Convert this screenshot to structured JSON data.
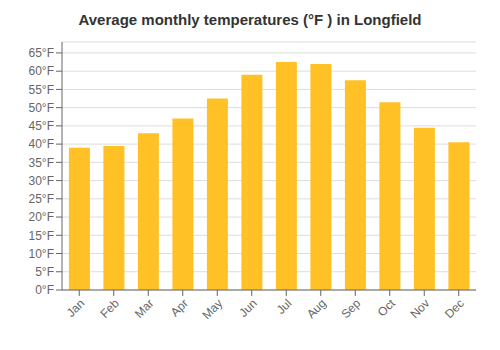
{
  "chart_data": {
    "type": "bar",
    "title": "Average monthly temperatures (°F ) in Longfield",
    "categories": [
      "Jan",
      "Feb",
      "Mar",
      "Apr",
      "May",
      "Jun",
      "Jul",
      "Aug",
      "Sep",
      "Oct",
      "Nov",
      "Dec"
    ],
    "values": [
      39,
      39.5,
      43,
      47,
      52.5,
      59,
      62.5,
      62,
      57.5,
      51.5,
      44.5,
      40.5
    ],
    "color": "#FFC125",
    "ylim": [
      0,
      68
    ],
    "yticks": [
      {
        "value": 0,
        "label": "0°F"
      },
      {
        "value": 5,
        "label": "5°F"
      },
      {
        "value": 10,
        "label": "10°F"
      },
      {
        "value": 15,
        "label": "15°F"
      },
      {
        "value": 20,
        "label": "20°F"
      },
      {
        "value": 25,
        "label": "25°F"
      },
      {
        "value": 30,
        "label": "30°F"
      },
      {
        "value": 35,
        "label": "35°F"
      },
      {
        "value": 40,
        "label": "40°F"
      },
      {
        "value": 45,
        "label": "45°F"
      },
      {
        "value": 50,
        "label": "50°F"
      },
      {
        "value": 55,
        "label": "55°F"
      },
      {
        "value": 60,
        "label": "60°F"
      },
      {
        "value": 65,
        "label": "65°F"
      }
    ],
    "grid": true
  }
}
